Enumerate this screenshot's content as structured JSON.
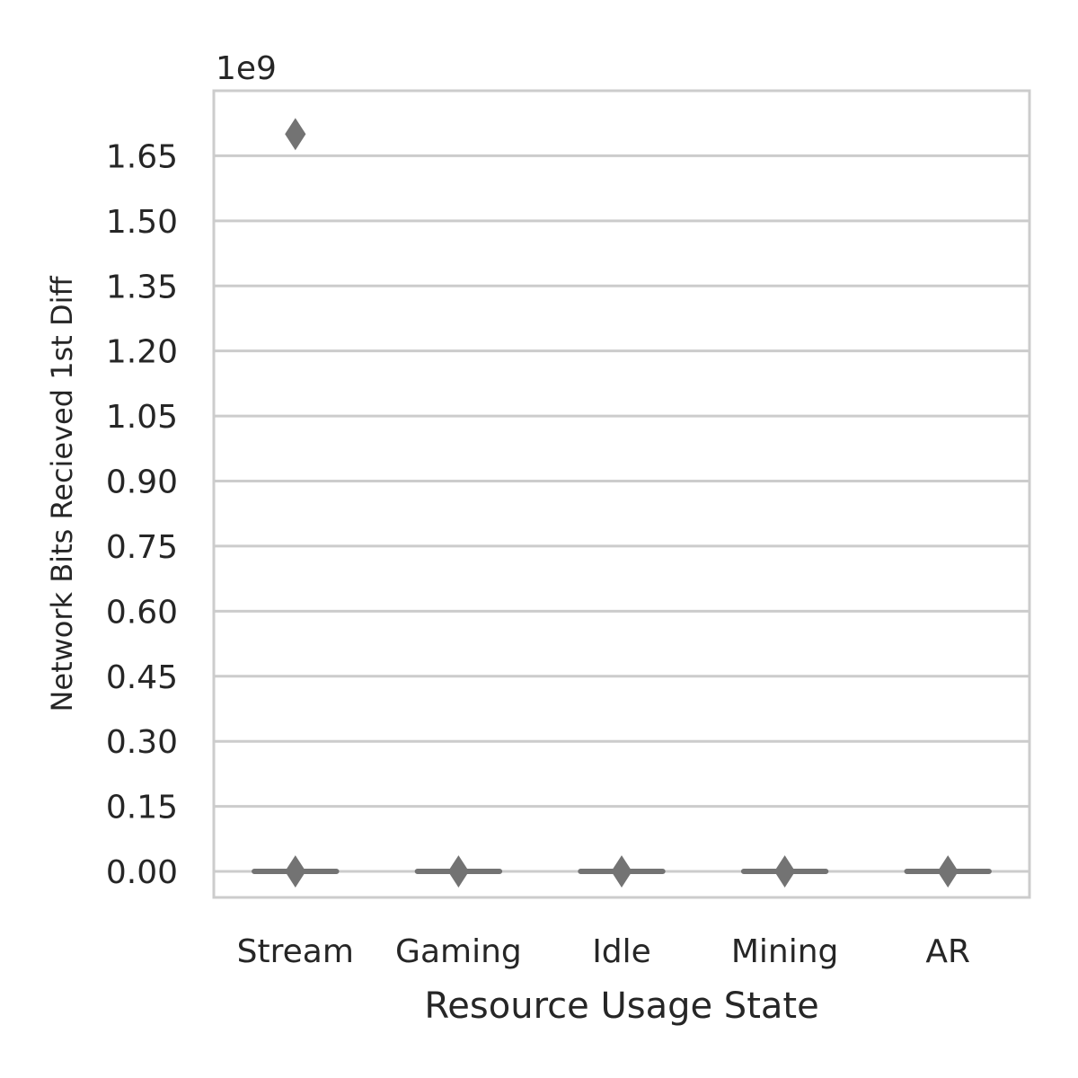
{
  "chart_data": {
    "type": "box",
    "xlabel": "Resource Usage State",
    "ylabel": "Network Bits Recieved 1st Diff",
    "y_offset_label": "1e9",
    "y_multiplier": 1000000000,
    "ylim": [
      -0.06,
      1.8
    ],
    "yticks": [
      0.0,
      0.15,
      0.3,
      0.45,
      0.6,
      0.75,
      0.9,
      1.05,
      1.2,
      1.35,
      1.5,
      1.65
    ],
    "ytick_labels": [
      "0.00",
      "0.15",
      "0.30",
      "0.45",
      "0.60",
      "0.75",
      "0.90",
      "1.05",
      "1.20",
      "1.35",
      "1.50",
      "1.65"
    ],
    "grid": true,
    "categories": [
      "Stream",
      "Gaming",
      "Idle",
      "Mining",
      "AR"
    ],
    "boxes": [
      {
        "category": "Stream",
        "q1": 0.0,
        "median": 0.0,
        "q3": 0.0,
        "whisker_low": 0.0,
        "whisker_high": 0.0,
        "outliers": [
          0.0,
          1.7
        ]
      },
      {
        "category": "Gaming",
        "q1": 0.0,
        "median": 0.0,
        "q3": 0.0,
        "whisker_low": 0.0,
        "whisker_high": 0.0,
        "outliers": [
          0.0
        ]
      },
      {
        "category": "Idle",
        "q1": 0.0,
        "median": 0.0,
        "q3": 0.0,
        "whisker_low": 0.0,
        "whisker_high": 0.0,
        "outliers": [
          0.0
        ]
      },
      {
        "category": "Mining",
        "q1": 0.0,
        "median": 0.0,
        "q3": 0.0,
        "whisker_low": 0.0,
        "whisker_high": 0.0,
        "outliers": [
          0.0
        ]
      },
      {
        "category": "AR",
        "q1": 0.0,
        "median": 0.0,
        "q3": 0.0,
        "whisker_low": 0.0,
        "whisker_high": 0.0,
        "outliers": [
          0.0
        ]
      }
    ],
    "colors": {
      "box": "#737373",
      "grid": "#cccccc",
      "frame": "#cccccc",
      "text": "#262626"
    }
  }
}
